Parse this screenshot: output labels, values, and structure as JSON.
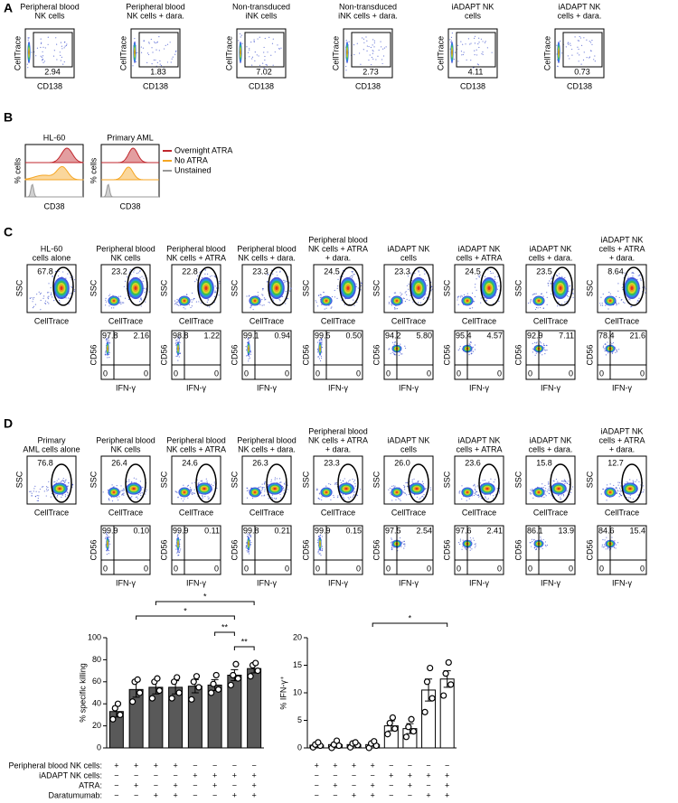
{
  "panel_a": {
    "label": "A",
    "y_label": "CellTrace",
    "x_label": "CD138",
    "plots": [
      {
        "title": [
          "Peripheral blood",
          "NK cells"
        ],
        "gate": "2.94"
      },
      {
        "title": [
          "Peripheral blood",
          "NK cells + dara."
        ],
        "gate": "1.83"
      },
      {
        "title": [
          "Non-transduced",
          "iNK cells"
        ],
        "gate": "7.02"
      },
      {
        "title": [
          "Non-transduced",
          "iNK cells + dara."
        ],
        "gate": "2.73"
      },
      {
        "title": [
          "iADAPT NK",
          "cells"
        ],
        "gate": "4.11"
      },
      {
        "title": [
          "iADAPT NK",
          "cells + dara."
        ],
        "gate": "0.73"
      }
    ]
  },
  "panel_b": {
    "label": "B",
    "y_label": "% cells",
    "x_label": "CD38",
    "plots": [
      {
        "title": "HL-60"
      },
      {
        "title": "Primary AML"
      }
    ],
    "legend": [
      {
        "name": "Overnight ATRA",
        "color": "#c0272d"
      },
      {
        "name": "No ATRA",
        "color": "#f5a623"
      },
      {
        "name": "Unstained",
        "color": "#999999"
      }
    ]
  },
  "panel_c": {
    "label": "C",
    "top_y_label": "SSC",
    "top_x_label": "CellTrace",
    "bottom_y_label": "CD56",
    "bottom_x_label": "IFN-γ",
    "plots": [
      {
        "title": [
          "HL-60",
          "cells alone"
        ],
        "gate": "67.8"
      },
      {
        "title": [
          "Peripheral blood",
          "NK cells"
        ],
        "gate": "23.2",
        "quadrants": [
          "97.8",
          "2.16",
          "0",
          "0"
        ]
      },
      {
        "title": [
          "Peripheral blood",
          "NK cells + ATRA"
        ],
        "gate": "22.8",
        "quadrants": [
          "98.8",
          "1.22",
          "0",
          "0"
        ]
      },
      {
        "title": [
          "Peripheral blood",
          "NK cells + dara."
        ],
        "gate": "23.3",
        "quadrants": [
          "99.1",
          "0.94",
          "0",
          "0"
        ]
      },
      {
        "title": [
          "Peripheral blood",
          "NK cells + ATRA",
          "+ dara."
        ],
        "gate": "24.5",
        "quadrants": [
          "99.5",
          "0.50",
          "0",
          "0"
        ]
      },
      {
        "title": [
          "iADAPT NK",
          "cells"
        ],
        "gate": "23.3",
        "quadrants": [
          "94.2",
          "5.80",
          "0",
          "0"
        ]
      },
      {
        "title": [
          "iADAPT NK",
          "cells + ATRA"
        ],
        "gate": "24.5",
        "quadrants": [
          "95.4",
          "4.57",
          "0",
          "0"
        ]
      },
      {
        "title": [
          "iADAPT NK",
          "cells + dara."
        ],
        "gate": "23.5",
        "quadrants": [
          "92.9",
          "7.11",
          "0",
          "0"
        ]
      },
      {
        "title": [
          "iADAPT NK",
          "cells + ATRA",
          "+ dara."
        ],
        "gate": "8.64",
        "quadrants": [
          "78.4",
          "21.6",
          "0",
          "0"
        ]
      }
    ]
  },
  "panel_d": {
    "label": "D",
    "top_y_label": "SSC",
    "top_x_label": "CellTrace",
    "bottom_y_label": "CD56",
    "bottom_x_label": "IFN-γ",
    "plots": [
      {
        "title": [
          "Primary",
          "AML cells alone"
        ],
        "gate": "76.8"
      },
      {
        "title": [
          "Peripheral blood",
          "NK cells"
        ],
        "gate": "26.4",
        "quadrants": [
          "99.9",
          "0.10",
          "0",
          "0"
        ]
      },
      {
        "title": [
          "Peripheral blood",
          "NK cells + ATRA"
        ],
        "gate": "24.6",
        "quadrants": [
          "99.9",
          "0.11",
          "0",
          "0"
        ]
      },
      {
        "title": [
          "Peripheral blood",
          "NK cells + dara."
        ],
        "gate": "26.3",
        "quadrants": [
          "99.8",
          "0.21",
          "0",
          "0"
        ]
      },
      {
        "title": [
          "Peripheral blood",
          "NK cells + ATRA",
          "+ dara."
        ],
        "gate": "23.3",
        "quadrants": [
          "99.9",
          "0.15",
          "0",
          "0"
        ]
      },
      {
        "title": [
          "iADAPT NK",
          "cells"
        ],
        "gate": "26.0",
        "quadrants": [
          "97.5",
          "2.54",
          "0",
          "0"
        ]
      },
      {
        "title": [
          "iADAPT NK",
          "cells + ATRA"
        ],
        "gate": "23.6",
        "quadrants": [
          "97.6",
          "2.41",
          "0",
          "0"
        ]
      },
      {
        "title": [
          "iADAPT NK",
          "cells + dara."
        ],
        "gate": "15.8",
        "quadrants": [
          "86.1",
          "13.9",
          "0",
          "0"
        ]
      },
      {
        "title": [
          "iADAPT NK",
          "cells + ATRA",
          "+ dara."
        ],
        "gate": "12.7",
        "quadrants": [
          "84.6",
          "15.4",
          "0",
          "0"
        ]
      }
    ]
  },
  "chart_data": [
    {
      "type": "bar",
      "y_label": "% specific killing",
      "color": "#595959",
      "values": [
        33,
        53,
        55,
        55,
        56,
        57,
        66,
        72
      ],
      "errors": [
        5,
        7,
        6,
        6,
        6,
        5,
        5,
        4
      ],
      "points": [
        [
          26,
          30,
          36,
          40
        ],
        [
          42,
          50,
          60,
          62
        ],
        [
          45,
          52,
          60,
          63
        ],
        [
          45,
          50,
          60,
          64
        ],
        [
          44,
          55,
          60,
          65
        ],
        [
          50,
          53,
          58,
          66
        ],
        [
          57,
          63,
          66,
          76
        ],
        [
          65,
          70,
          75,
          77
        ]
      ],
      "ylim": [
        0,
        100
      ],
      "yticks": [
        0,
        20,
        40,
        60,
        80,
        100
      ],
      "annotations": [
        "*",
        "*",
        "**",
        "**"
      ]
    },
    {
      "type": "bar",
      "y_label": "% IFN-γ⁺",
      "color": "#ffffff",
      "values": [
        0.5,
        0.6,
        0.6,
        0.6,
        4,
        3.5,
        10.5,
        12.5
      ],
      "errors": [
        0.3,
        0.4,
        0.3,
        0.3,
        0.9,
        0.9,
        2,
        1.5
      ],
      "points": [
        [
          0.1,
          0.4,
          0.6,
          1
        ],
        [
          0,
          0.4,
          0.6,
          1.3
        ],
        [
          0.1,
          0.5,
          0.8,
          1
        ],
        [
          0,
          0.4,
          0.8,
          1.2
        ],
        [
          2.5,
          3.5,
          4.5,
          5.5
        ],
        [
          2,
          3,
          3.8,
          5.2
        ],
        [
          6.5,
          9,
          12,
          14.5
        ],
        [
          9.5,
          11.5,
          13.5,
          15.5
        ]
      ],
      "ylim": [
        0,
        20
      ],
      "yticks": [
        0,
        5,
        10,
        15,
        20
      ],
      "annotations": [
        "*"
      ]
    }
  ],
  "conditions": {
    "rows": [
      {
        "label": "Peripheral blood NK cells:",
        "signs": [
          "+",
          "+",
          "+",
          "+",
          "−",
          "−",
          "−",
          "−"
        ]
      },
      {
        "label": "iADAPT NK cells:",
        "signs": [
          "−",
          "−",
          "−",
          "−",
          "+",
          "+",
          "+",
          "+"
        ]
      },
      {
        "label": "ATRA:",
        "signs": [
          "−",
          "+",
          "−",
          "+",
          "−",
          "+",
          "−",
          "+"
        ]
      },
      {
        "label": "Daratumumab:",
        "signs": [
          "−",
          "−",
          "+",
          "+",
          "−",
          "−",
          "+",
          "+"
        ]
      }
    ]
  }
}
